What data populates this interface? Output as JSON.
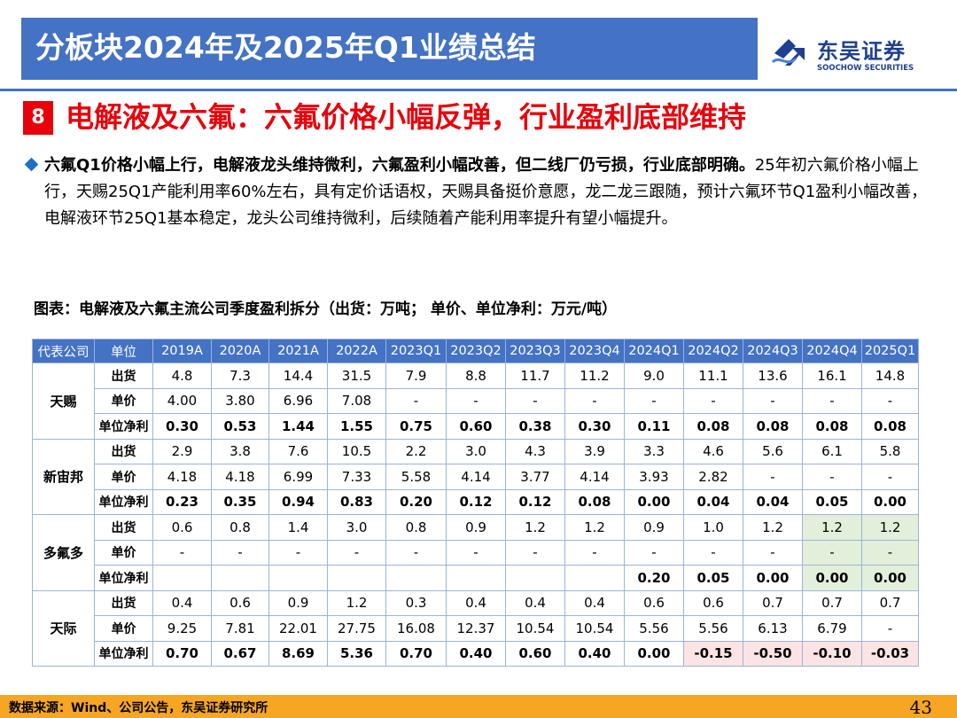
{
  "header": {
    "title": "分板块2024年及2025年Q1业绩总结",
    "logo_cn": "东吴证券",
    "logo_en": "SOOCHOW SECURITIES"
  },
  "section": {
    "number": "8",
    "title": "电解液及六氟：六氟价格小幅反弹，行业盈利底部维持"
  },
  "bullet": {
    "bold": "六氟Q1价格小幅上行，电解液龙头维持微利，六氟盈利小幅改善，但二线厂仍亏损，行业底部明确。",
    "text": "25年初六氟价格小幅上行，天赐25Q1产能利用率60%左右，具有定价话语权，天赐具备挺价意愿，龙二龙三跟随，预计六氟环节Q1盈利小幅改善，电解液环节25Q1基本稳定，龙头公司维持微利，后续随着产能利用率提升有望小幅提升。"
  },
  "caption": "图表：电解液及六氟主流公司季度盈利拆分（出货：万吨；  单价、单位净利：万元/吨）",
  "table": {
    "headers": [
      "代表公司",
      "单位",
      "2019A",
      "2020A",
      "2021A",
      "2022A",
      "2023Q1",
      "2023Q2",
      "2023Q3",
      "2023Q4",
      "2024Q1",
      "2024Q2",
      "2024Q3",
      "2024Q4",
      "2025Q1"
    ],
    "groups": [
      {
        "company": "天赐",
        "rows": [
          {
            "metric": "出货",
            "values": [
              "4.8",
              "7.3",
              "14.4",
              "31.5",
              "7.9",
              "8.8",
              "11.7",
              "11.2",
              "9.0",
              "11.1",
              "13.6",
              "16.1",
              "14.8"
            ]
          },
          {
            "metric": "单价",
            "values": [
              "4.00",
              "3.80",
              "6.96",
              "7.08",
              "-",
              "-",
              "-",
              "-",
              "-",
              "-",
              "-",
              "-",
              "-"
            ]
          },
          {
            "metric": "单位净利",
            "values": [
              "0.30",
              "0.53",
              "1.44",
              "1.55",
              "0.75",
              "0.60",
              "0.38",
              "0.30",
              "0.11",
              "0.08",
              "0.08",
              "0.08",
              "0.08"
            ]
          }
        ]
      },
      {
        "company": "新宙邦",
        "rows": [
          {
            "metric": "出货",
            "values": [
              "2.9",
              "3.8",
              "7.6",
              "10.5",
              "2.2",
              "3.0",
              "4.3",
              "3.9",
              "3.3",
              "4.6",
              "5.6",
              "6.1",
              "5.8"
            ]
          },
          {
            "metric": "单价",
            "values": [
              "4.18",
              "4.18",
              "6.99",
              "7.33",
              "5.58",
              "4.14",
              "3.77",
              "4.14",
              "3.93",
              "2.82",
              "-",
              "-",
              "-"
            ]
          },
          {
            "metric": "单位净利",
            "values": [
              "0.23",
              "0.35",
              "0.94",
              "0.83",
              "0.20",
              "0.12",
              "0.12",
              "0.08",
              "0.00",
              "0.04",
              "0.04",
              "0.05",
              "0.00"
            ]
          }
        ]
      },
      {
        "company": "多氟多",
        "rows": [
          {
            "metric": "出货",
            "values": [
              "0.6",
              "0.8",
              "1.4",
              "3.0",
              "0.8",
              "0.9",
              "1.2",
              "1.2",
              "0.9",
              "1.0",
              "1.2",
              "1.2",
              "1.2"
            ]
          },
          {
            "metric": "单价",
            "values": [
              "-",
              "-",
              "-",
              "-",
              "-",
              "-",
              "-",
              "-",
              "-",
              "-",
              "-",
              "-",
              "-"
            ]
          },
          {
            "metric": "单位净利",
            "values": [
              "",
              "",
              "",
              "",
              "",
              "",
              "",
              "",
              "0.20",
              "0.05",
              "0.00",
              "0.00",
              "0.00"
            ]
          }
        ]
      },
      {
        "company": "天际",
        "rows": [
          {
            "metric": "出货",
            "values": [
              "0.4",
              "0.6",
              "0.9",
              "1.2",
              "0.3",
              "0.4",
              "0.4",
              "0.4",
              "0.6",
              "0.6",
              "0.7",
              "0.7",
              "0.7"
            ]
          },
          {
            "metric": "单价",
            "values": [
              "9.25",
              "7.81",
              "22.01",
              "27.75",
              "16.08",
              "12.37",
              "10.54",
              "10.54",
              "5.56",
              "5.56",
              "6.13",
              "6.79",
              "-"
            ]
          },
          {
            "metric": "单位净利",
            "values": [
              "0.70",
              "0.67",
              "8.69",
              "5.36",
              "0.70",
              "0.40",
              "0.60",
              "0.40",
              "0.00",
              "-0.15",
              "-0.50",
              "-0.10",
              "-0.03"
            ]
          }
        ]
      }
    ],
    "highlight_colors": {
      "green": "#e2efda",
      "red": "#fce4e4"
    }
  },
  "footer": {
    "source": "数据来源：Wind、公司公告，东吴证券研究所",
    "page": "43"
  },
  "colors": {
    "title_bar": "#4472c4",
    "accent_red": "#e8000b",
    "footer": "#f6a623"
  }
}
